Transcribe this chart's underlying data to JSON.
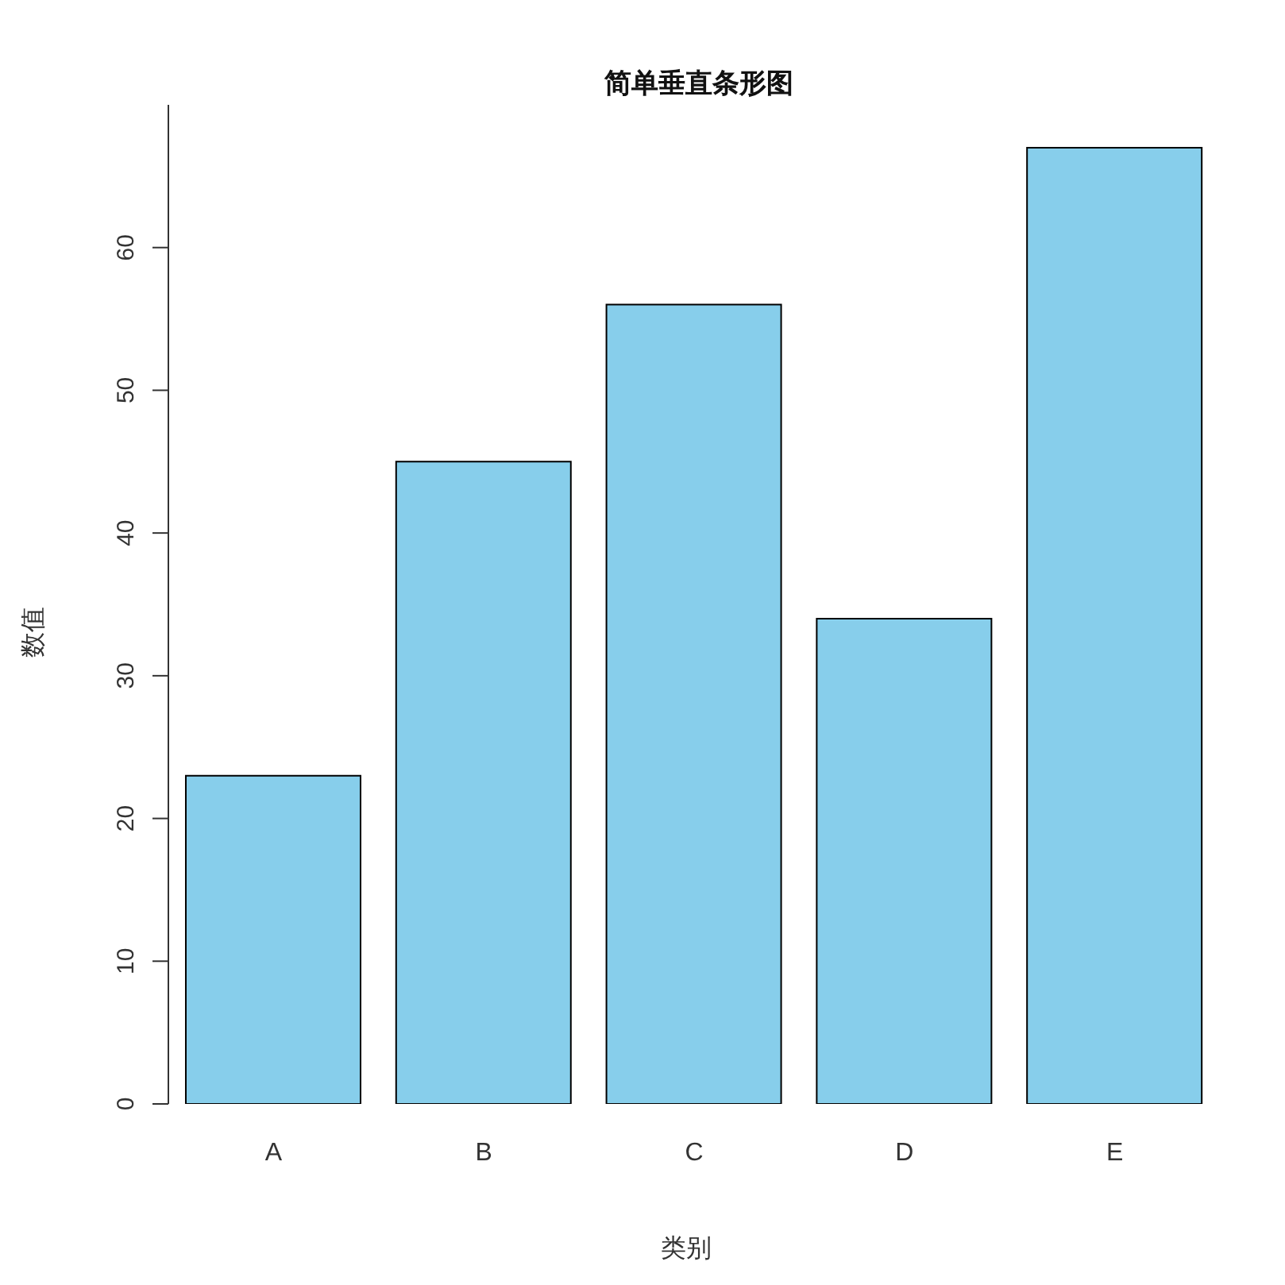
{
  "chart_data": {
    "type": "bar",
    "title": "简单垂直条形图",
    "xlabel": "类别",
    "ylabel": "数值",
    "categories": [
      "A",
      "B",
      "C",
      "D",
      "E"
    ],
    "values": [
      23,
      45,
      56,
      34,
      67
    ],
    "color": "#87ceeb",
    "ylim": [
      0,
      70
    ],
    "yticks": [
      0,
      10,
      20,
      30,
      40,
      50,
      60
    ],
    "grid": false,
    "legend": false
  }
}
